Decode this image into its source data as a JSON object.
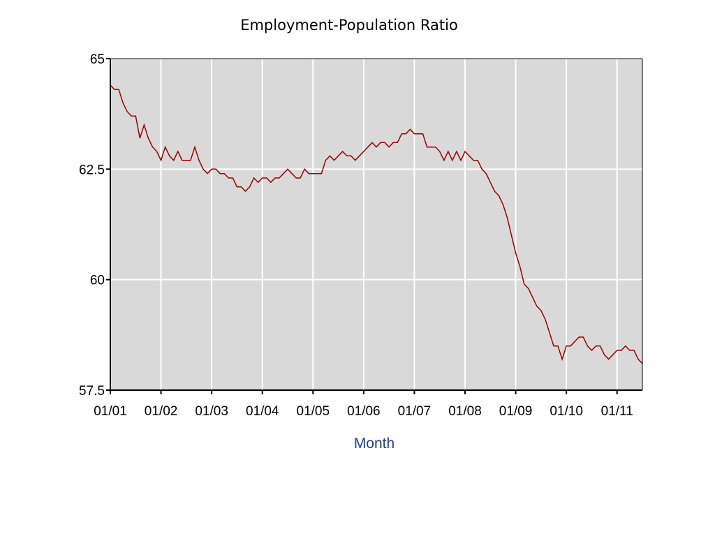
{
  "chart_data": {
    "type": "line",
    "title": "Employment-Population Ratio",
    "xlabel": "Month",
    "ylabel": "",
    "ylim": [
      57.5,
      65
    ],
    "xlim": [
      "2001-01",
      "2011-07"
    ],
    "y_ticks": [
      "65",
      "62.5",
      "60",
      "57.5"
    ],
    "x_ticks": [
      "01/01",
      "01/02",
      "01/03",
      "01/04",
      "01/05",
      "01/06",
      "01/07",
      "01/08",
      "01/09",
      "01/10",
      "01/11"
    ],
    "grid": true,
    "colors": {
      "plot_bg": "#d9d9d9",
      "grid": "#ffffff",
      "line": "#990000",
      "axis_title": "#1f3f99"
    },
    "series": [
      {
        "values": [
          [
            "2001-01",
            64.4
          ],
          [
            "2001-02",
            64.3
          ],
          [
            "2001-03",
            64.3
          ],
          [
            "2001-04",
            64.0
          ],
          [
            "2001-05",
            63.8
          ],
          [
            "2001-06",
            63.7
          ],
          [
            "2001-07",
            63.7
          ],
          [
            "2001-08",
            63.2
          ],
          [
            "2001-09",
            63.5
          ],
          [
            "2001-10",
            63.2
          ],
          [
            "2001-11",
            63.0
          ],
          [
            "2001-12",
            62.9
          ],
          [
            "2002-01",
            62.7
          ],
          [
            "2002-02",
            63.0
          ],
          [
            "2002-03",
            62.8
          ],
          [
            "2002-04",
            62.7
          ],
          [
            "2002-05",
            62.9
          ],
          [
            "2002-06",
            62.7
          ],
          [
            "2002-07",
            62.7
          ],
          [
            "2002-08",
            62.7
          ],
          [
            "2002-09",
            63.0
          ],
          [
            "2002-10",
            62.7
          ],
          [
            "2002-11",
            62.5
          ],
          [
            "2002-12",
            62.4
          ],
          [
            "2003-01",
            62.5
          ],
          [
            "2003-02",
            62.5
          ],
          [
            "2003-03",
            62.4
          ],
          [
            "2003-04",
            62.4
          ],
          [
            "2003-05",
            62.3
          ],
          [
            "2003-06",
            62.3
          ],
          [
            "2003-07",
            62.1
          ],
          [
            "2003-08",
            62.1
          ],
          [
            "2003-09",
            62.0
          ],
          [
            "2003-10",
            62.1
          ],
          [
            "2003-11",
            62.3
          ],
          [
            "2003-12",
            62.2
          ],
          [
            "2004-01",
            62.3
          ],
          [
            "2004-02",
            62.3
          ],
          [
            "2004-03",
            62.2
          ],
          [
            "2004-04",
            62.3
          ],
          [
            "2004-05",
            62.3
          ],
          [
            "2004-06",
            62.4
          ],
          [
            "2004-07",
            62.5
          ],
          [
            "2004-08",
            62.4
          ],
          [
            "2004-09",
            62.3
          ],
          [
            "2004-10",
            62.3
          ],
          [
            "2004-11",
            62.5
          ],
          [
            "2004-12",
            62.4
          ],
          [
            "2005-01",
            62.4
          ],
          [
            "2005-02",
            62.4
          ],
          [
            "2005-03",
            62.4
          ],
          [
            "2005-04",
            62.7
          ],
          [
            "2005-05",
            62.8
          ],
          [
            "2005-06",
            62.7
          ],
          [
            "2005-07",
            62.8
          ],
          [
            "2005-08",
            62.9
          ],
          [
            "2005-09",
            62.8
          ],
          [
            "2005-10",
            62.8
          ],
          [
            "2005-11",
            62.7
          ],
          [
            "2005-12",
            62.8
          ],
          [
            "2006-01",
            62.9
          ],
          [
            "2006-02",
            63.0
          ],
          [
            "2006-03",
            63.1
          ],
          [
            "2006-04",
            63.0
          ],
          [
            "2006-05",
            63.1
          ],
          [
            "2006-06",
            63.1
          ],
          [
            "2006-07",
            63.0
          ],
          [
            "2006-08",
            63.1
          ],
          [
            "2006-09",
            63.1
          ],
          [
            "2006-10",
            63.3
          ],
          [
            "2006-11",
            63.3
          ],
          [
            "2006-12",
            63.4
          ],
          [
            "2007-01",
            63.3
          ],
          [
            "2007-02",
            63.3
          ],
          [
            "2007-03",
            63.3
          ],
          [
            "2007-04",
            63.0
          ],
          [
            "2007-05",
            63.0
          ],
          [
            "2007-06",
            63.0
          ],
          [
            "2007-07",
            62.9
          ],
          [
            "2007-08",
            62.7
          ],
          [
            "2007-09",
            62.9
          ],
          [
            "2007-10",
            62.7
          ],
          [
            "2007-11",
            62.9
          ],
          [
            "2007-12",
            62.7
          ],
          [
            "2008-01",
            62.9
          ],
          [
            "2008-02",
            62.8
          ],
          [
            "2008-03",
            62.7
          ],
          [
            "2008-04",
            62.7
          ],
          [
            "2008-05",
            62.5
          ],
          [
            "2008-06",
            62.4
          ],
          [
            "2008-07",
            62.2
          ],
          [
            "2008-08",
            62.0
          ],
          [
            "2008-09",
            61.9
          ],
          [
            "2008-10",
            61.7
          ],
          [
            "2008-11",
            61.4
          ],
          [
            "2008-12",
            61.0
          ],
          [
            "2009-01",
            60.6
          ],
          [
            "2009-02",
            60.3
          ],
          [
            "2009-03",
            59.9
          ],
          [
            "2009-04",
            59.8
          ],
          [
            "2009-05",
            59.6
          ],
          [
            "2009-06",
            59.4
          ],
          [
            "2009-07",
            59.3
          ],
          [
            "2009-08",
            59.1
          ],
          [
            "2009-09",
            58.8
          ],
          [
            "2009-10",
            58.5
          ],
          [
            "2009-11",
            58.5
          ],
          [
            "2009-12",
            58.2
          ],
          [
            "2010-01",
            58.5
          ],
          [
            "2010-02",
            58.5
          ],
          [
            "2010-03",
            58.6
          ],
          [
            "2010-04",
            58.7
          ],
          [
            "2010-05",
            58.7
          ],
          [
            "2010-06",
            58.5
          ],
          [
            "2010-07",
            58.4
          ],
          [
            "2010-08",
            58.5
          ],
          [
            "2010-09",
            58.5
          ],
          [
            "2010-10",
            58.3
          ],
          [
            "2010-11",
            58.2
          ],
          [
            "2010-12",
            58.3
          ],
          [
            "2011-01",
            58.4
          ],
          [
            "2011-02",
            58.4
          ],
          [
            "2011-03",
            58.5
          ],
          [
            "2011-04",
            58.4
          ],
          [
            "2011-05",
            58.4
          ],
          [
            "2011-06",
            58.2
          ],
          [
            "2011-07",
            58.1
          ]
        ]
      }
    ]
  }
}
